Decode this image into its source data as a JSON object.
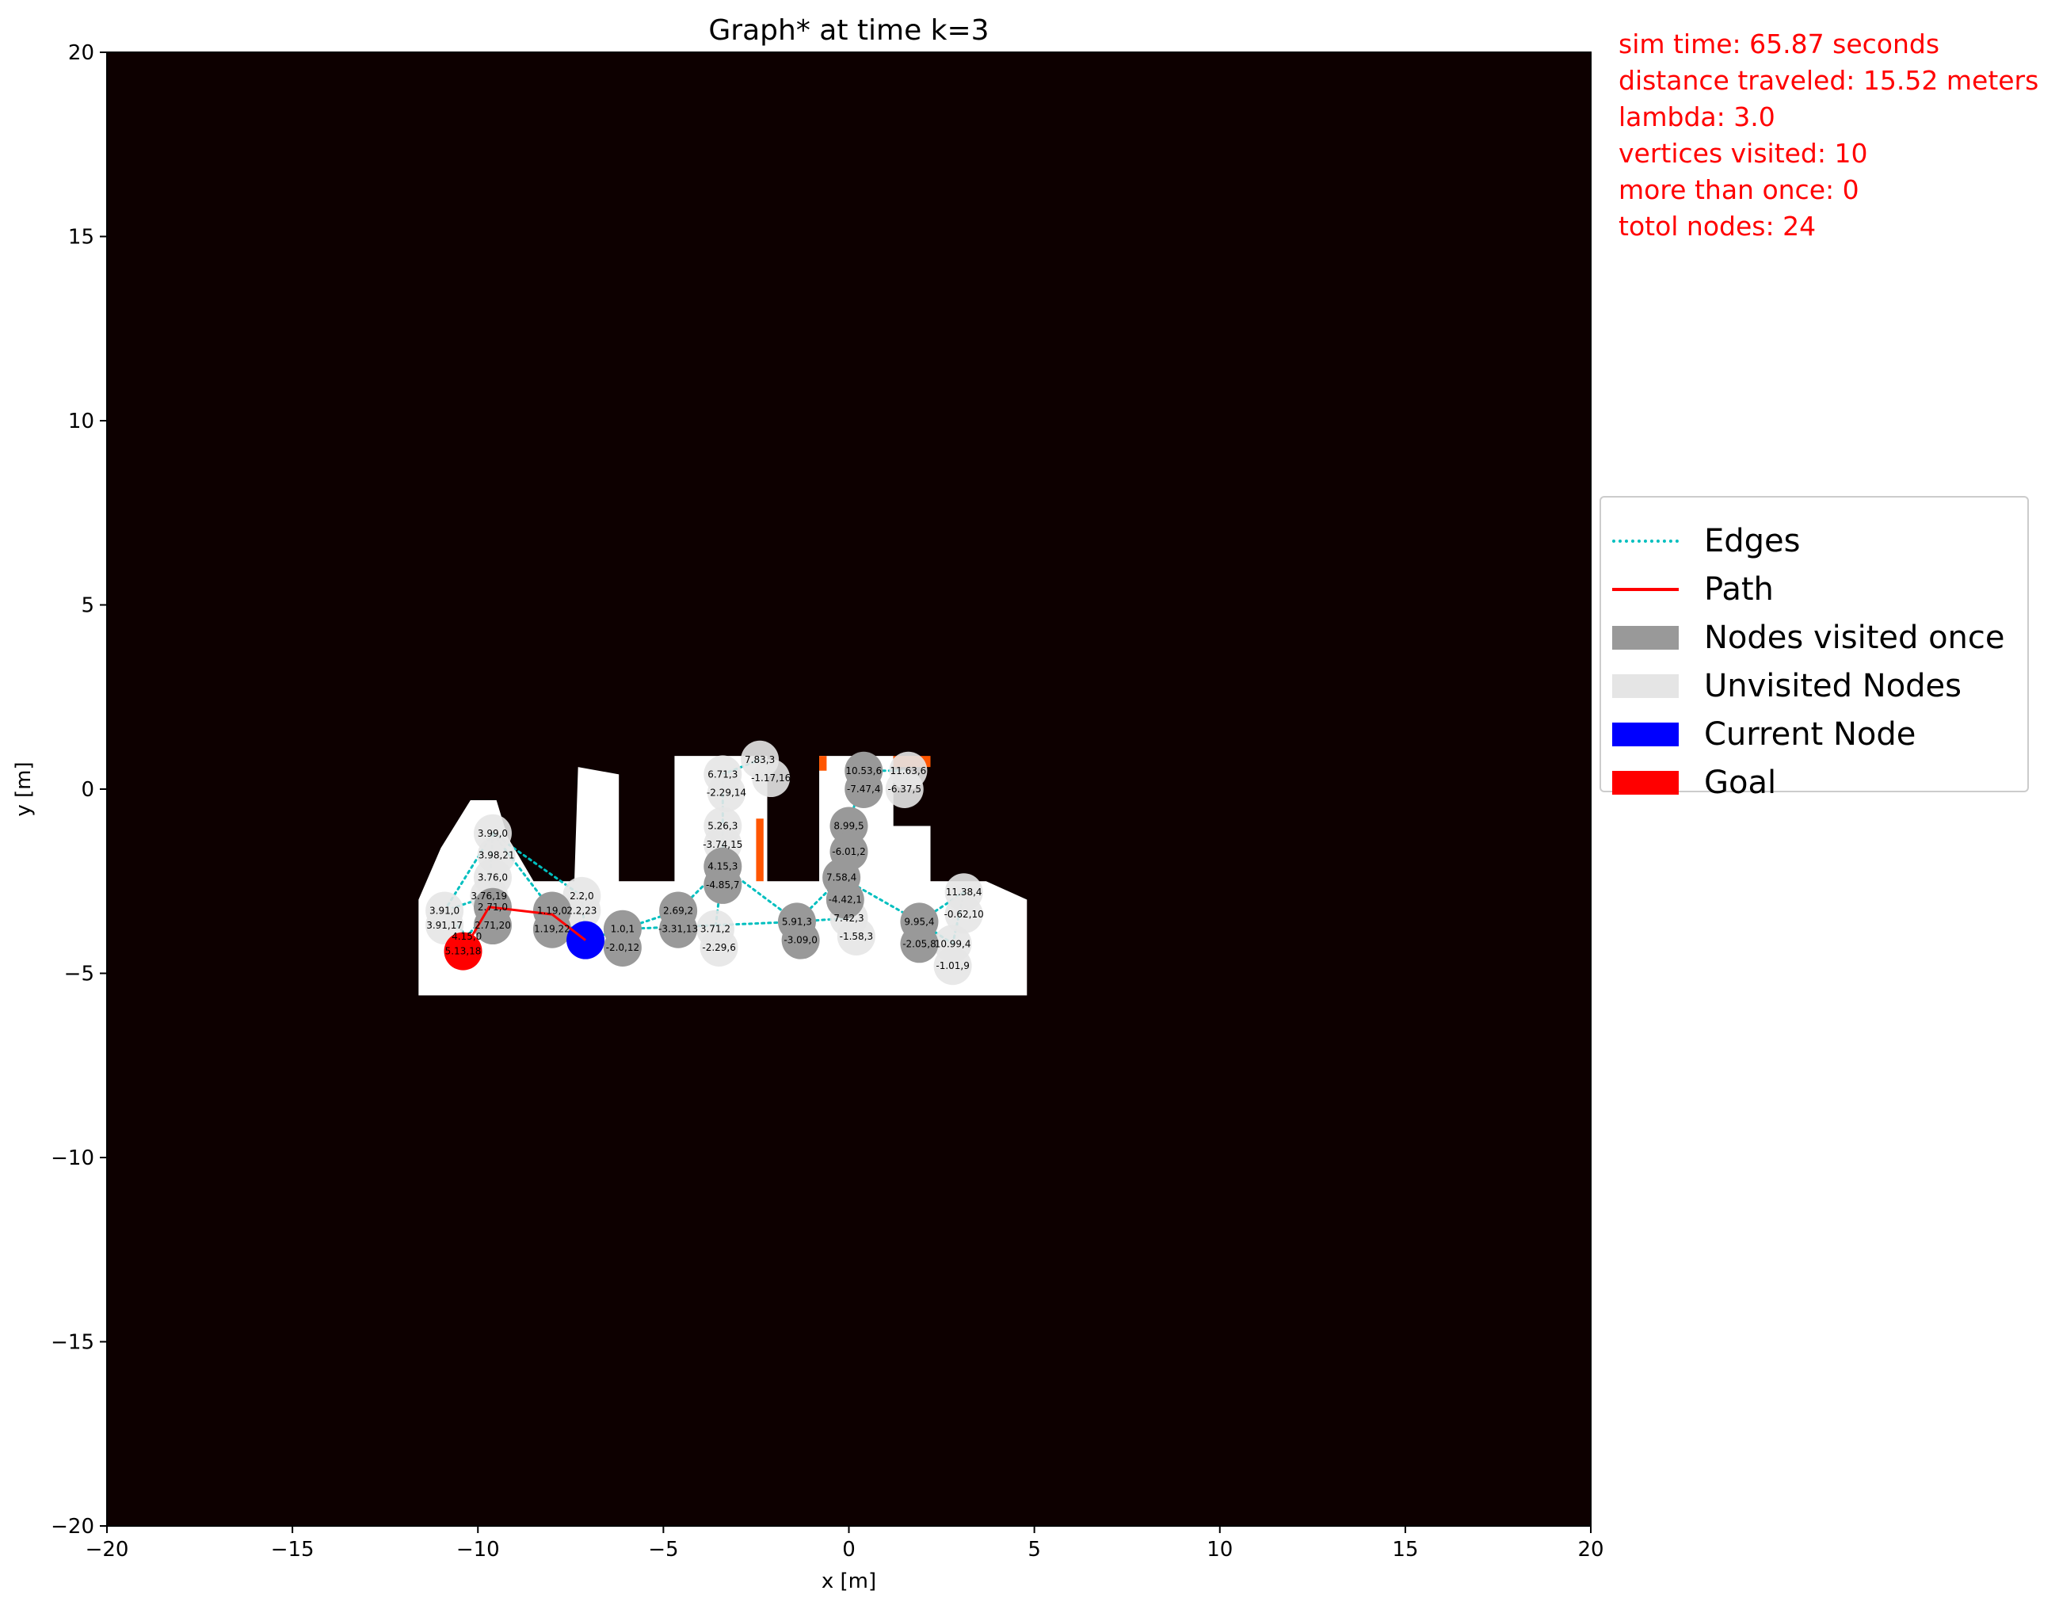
{
  "chart_data": {
    "type": "scatter",
    "title": "Graph* at time k=3",
    "xlabel": "x [m]",
    "ylabel": "y [m]",
    "xlim": [
      -20,
      20
    ],
    "ylim": [
      -20,
      20
    ],
    "xticks": [
      -20,
      -15,
      -10,
      -5,
      0,
      5,
      10,
      15,
      20
    ],
    "yticks": [
      -20,
      -15,
      -10,
      -5,
      0,
      5,
      10,
      15,
      20
    ],
    "xtick_labels": [
      "−20",
      "−15",
      "−10",
      "−5",
      "0",
      "5",
      "10",
      "15",
      "20"
    ],
    "ytick_labels": [
      "−20",
      "−15",
      "−10",
      "−5",
      "0",
      "5",
      "10",
      "15",
      "20"
    ],
    "background_color": "#0d0000",
    "free_space_color": "#ffffff",
    "frontier_color": "#ff5500",
    "nodes": [
      {
        "x": -9.6,
        "y": -1.2,
        "label": "3.99,0",
        "state": "unvisited"
      },
      {
        "x": -9.5,
        "y": -1.8,
        "label": "3.98,21",
        "state": "unvisited"
      },
      {
        "x": -9.6,
        "y": -2.4,
        "label": "3.76,0",
        "state": "unvisited"
      },
      {
        "x": -9.7,
        "y": -2.9,
        "label": "3.76,19",
        "state": "unvisited"
      },
      {
        "x": -9.6,
        "y": -3.2,
        "label": "2.71,0",
        "state": "visited"
      },
      {
        "x": -9.6,
        "y": -3.7,
        "label": "2.71,20",
        "state": "visited"
      },
      {
        "x": -10.9,
        "y": -3.3,
        "label": "3.91,0",
        "state": "unvisited"
      },
      {
        "x": -10.9,
        "y": -3.7,
        "label": "3.91,17",
        "state": "unvisited"
      },
      {
        "x": -10.4,
        "y": -4.4,
        "label": "5.13,18",
        "state": "goal"
      },
      {
        "x": -10.3,
        "y": -4.0,
        "label": "4.15,0",
        "state": "goal"
      },
      {
        "x": -8.0,
        "y": -3.3,
        "label": "1.19,0",
        "state": "visited"
      },
      {
        "x": -8.0,
        "y": -3.8,
        "label": "1.19,22",
        "state": "visited"
      },
      {
        "x": -7.2,
        "y": -2.9,
        "label": "2.2,0",
        "state": "unvisited"
      },
      {
        "x": -7.2,
        "y": -3.3,
        "label": "2.2,23",
        "state": "unvisited"
      },
      {
        "x": -7.1,
        "y": -4.1,
        "label": "",
        "state": "current"
      },
      {
        "x": -6.1,
        "y": -3.8,
        "label": "1.0,1",
        "state": "visited"
      },
      {
        "x": -6.1,
        "y": -4.3,
        "label": "-2.0,12",
        "state": "visited"
      },
      {
        "x": -4.6,
        "y": -3.3,
        "label": "2.69,2",
        "state": "visited"
      },
      {
        "x": -4.6,
        "y": -3.8,
        "label": "-3.31,13",
        "state": "visited"
      },
      {
        "x": -3.6,
        "y": -3.8,
        "label": "3.71,2",
        "state": "unvisited"
      },
      {
        "x": -3.5,
        "y": -4.3,
        "label": "-2.29,6",
        "state": "unvisited"
      },
      {
        "x": -3.4,
        "y": -2.1,
        "label": "4.15,3",
        "state": "visited"
      },
      {
        "x": -3.4,
        "y": -2.6,
        "label": "-4.85,7",
        "state": "visited"
      },
      {
        "x": -3.4,
        "y": -1.0,
        "label": "5.26,3",
        "state": "unvisited"
      },
      {
        "x": -3.4,
        "y": -1.5,
        "label": "-3.74,15",
        "state": "unvisited"
      },
      {
        "x": -3.4,
        "y": 0.4,
        "label": "6.71,3",
        "state": "unvisited"
      },
      {
        "x": -3.3,
        "y": -0.1,
        "label": "-2.29,14",
        "state": "unvisited"
      },
      {
        "x": -2.4,
        "y": 0.8,
        "label": "7.83,3",
        "state": "unvisited"
      },
      {
        "x": -2.1,
        "y": 0.3,
        "label": "-1.17,16",
        "state": "unvisited"
      },
      {
        "x": -1.4,
        "y": -3.6,
        "label": "5.91,3",
        "state": "visited"
      },
      {
        "x": -1.3,
        "y": -4.1,
        "label": "-3.09,0",
        "state": "visited"
      },
      {
        "x": 0.0,
        "y": -3.5,
        "label": "7.42,3",
        "state": "unvisited"
      },
      {
        "x": 0.2,
        "y": -4.0,
        "label": "-1.58,3",
        "state": "unvisited"
      },
      {
        "x": -0.2,
        "y": -2.4,
        "label": "7.58,4",
        "state": "visited"
      },
      {
        "x": -0.1,
        "y": -3.0,
        "label": "-4.42,1",
        "state": "visited"
      },
      {
        "x": 0.0,
        "y": -1.0,
        "label": "8.99,5",
        "state": "visited"
      },
      {
        "x": 0.0,
        "y": -1.7,
        "label": "-6.01,2",
        "state": "visited"
      },
      {
        "x": 0.4,
        "y": 0.5,
        "label": "10.53,6",
        "state": "visited"
      },
      {
        "x": 0.4,
        "y": 0.0,
        "label": "-7.47,4",
        "state": "visited"
      },
      {
        "x": 1.6,
        "y": 0.5,
        "label": "11.63,6",
        "state": "unvisited"
      },
      {
        "x": 1.5,
        "y": 0.0,
        "label": "-6.37,5",
        "state": "unvisited"
      },
      {
        "x": 1.9,
        "y": -3.6,
        "label": "9.95,4",
        "state": "visited"
      },
      {
        "x": 1.9,
        "y": -4.2,
        "label": "-2.05,8",
        "state": "visited"
      },
      {
        "x": 2.8,
        "y": -4.2,
        "label": "10.99,4",
        "state": "unvisited"
      },
      {
        "x": 2.8,
        "y": -4.8,
        "label": "-1.01,9",
        "state": "unvisited"
      },
      {
        "x": 3.1,
        "y": -2.8,
        "label": "11.38,4",
        "state": "unvisited"
      },
      {
        "x": 3.1,
        "y": -3.4,
        "label": "-0.62,10",
        "state": "unvisited"
      }
    ],
    "edges": [
      [
        [
          -9.6,
          -1.2
        ],
        [
          -9.7,
          -2.9
        ]
      ],
      [
        [
          -9.7,
          -2.9
        ],
        [
          -9.6,
          -3.2
        ]
      ],
      [
        [
          -9.6,
          -1.2
        ],
        [
          -8.0,
          -3.3
        ]
      ],
      [
        [
          -9.7,
          -2.9
        ],
        [
          -10.9,
          -3.3
        ]
      ],
      [
        [
          -10.9,
          -3.3
        ],
        [
          -10.3,
          -4.0
        ]
      ],
      [
        [
          -9.6,
          -3.2
        ],
        [
          -10.3,
          -4.0
        ]
      ],
      [
        [
          -9.6,
          -1.2
        ],
        [
          -10.9,
          -3.3
        ]
      ],
      [
        [
          -9.6,
          -1.2
        ],
        [
          -7.2,
          -2.9
        ]
      ],
      [
        [
          -7.2,
          -2.9
        ],
        [
          -7.1,
          -4.1
        ]
      ],
      [
        [
          -8.0,
          -3.3
        ],
        [
          -7.1,
          -4.1
        ]
      ],
      [
        [
          -7.1,
          -4.1
        ],
        [
          -6.1,
          -3.8
        ]
      ],
      [
        [
          -6.1,
          -3.8
        ],
        [
          -4.6,
          -3.3
        ]
      ],
      [
        [
          -4.6,
          -3.3
        ],
        [
          -3.4,
          -2.1
        ]
      ],
      [
        [
          -3.4,
          -2.1
        ],
        [
          -3.4,
          0.4
        ]
      ],
      [
        [
          -3.4,
          0.4
        ],
        [
          -2.4,
          0.8
        ]
      ],
      [
        [
          -3.4,
          -2.1
        ],
        [
          -3.6,
          -3.8
        ]
      ],
      [
        [
          -3.4,
          -2.1
        ],
        [
          -1.4,
          -3.6
        ]
      ],
      [
        [
          -6.1,
          -3.8
        ],
        [
          -1.4,
          -3.6
        ]
      ],
      [
        [
          -1.4,
          -3.6
        ],
        [
          0.0,
          -3.5
        ]
      ],
      [
        [
          -1.4,
          -3.6
        ],
        [
          -0.2,
          -2.4
        ]
      ],
      [
        [
          -0.2,
          -2.4
        ],
        [
          0.0,
          -1.0
        ]
      ],
      [
        [
          0.0,
          -1.0
        ],
        [
          0.4,
          0.5
        ]
      ],
      [
        [
          0.4,
          0.5
        ],
        [
          1.6,
          0.5
        ]
      ],
      [
        [
          -0.2,
          -2.4
        ],
        [
          1.9,
          -3.6
        ]
      ],
      [
        [
          1.9,
          -3.6
        ],
        [
          3.1,
          -2.8
        ]
      ],
      [
        [
          1.9,
          -3.6
        ],
        [
          2.8,
          -4.2
        ]
      ],
      [
        [
          3.1,
          -2.8
        ],
        [
          2.8,
          -4.2
        ]
      ]
    ],
    "path": [
      [
        -10.4,
        -4.4
      ],
      [
        -9.7,
        -3.2
      ],
      [
        -8.0,
        -3.4
      ],
      [
        -7.1,
        -4.1
      ]
    ],
    "free_space": [
      [
        [
          -11.6,
          -3.0
        ],
        [
          -11.6,
          -5.6
        ],
        [
          4.8,
          -5.6
        ],
        [
          4.8,
          -3.0
        ],
        [
          3.7,
          -2.5
        ],
        [
          2.2,
          -2.5
        ],
        [
          2.2,
          -1.0
        ],
        [
          1.2,
          -1.0
        ],
        [
          1.2,
          0.9
        ],
        [
          -0.8,
          0.9
        ],
        [
          -0.8,
          -2.5
        ],
        [
          -2.2,
          -2.5
        ],
        [
          -2.2,
          0.9
        ],
        [
          -4.7,
          0.9
        ],
        [
          -4.7,
          -2.5
        ],
        [
          -6.2,
          -2.5
        ],
        [
          -6.2,
          0.4
        ],
        [
          -7.3,
          0.6
        ],
        [
          -7.4,
          -2.5
        ],
        [
          -8.5,
          -2.5
        ],
        [
          -9.2,
          -1.3
        ],
        [
          -9.5,
          -0.3
        ],
        [
          -10.2,
          -0.3
        ],
        [
          -11.0,
          -1.6
        ]
      ]
    ],
    "frontiers": [
      [
        [
          -2.5,
          -0.8
        ],
        [
          -2.3,
          -0.8
        ],
        [
          -2.3,
          -2.5
        ],
        [
          -2.5,
          -2.5
        ]
      ],
      [
        [
          -0.8,
          0.9
        ],
        [
          -0.6,
          0.9
        ],
        [
          -0.6,
          0.5
        ],
        [
          -0.8,
          0.5
        ]
      ],
      [
        [
          1.2,
          0.9
        ],
        [
          2.2,
          0.9
        ],
        [
          2.2,
          0.6
        ],
        [
          1.2,
          0.6
        ]
      ]
    ]
  },
  "info": {
    "sim_time": "sim time: 65.87 seconds",
    "distance": "distance traveled: 15.52 meters",
    "lambda": "lambda: 3.0",
    "vertices_visited": "vertices visited: 10",
    "more_than_once": "more than once: 0",
    "total_nodes": "totol nodes: 24"
  },
  "legend": {
    "edges": "Edges",
    "path": "Path",
    "visited_once": "Nodes visited once",
    "unvisited": "Unvisited Nodes",
    "current": "Current Node",
    "goal": "Goal",
    "colors": {
      "edges": "#00bfbf",
      "path": "#ff0000",
      "visited_once": "#999999",
      "unvisited": "#e5e5e5",
      "current": "#0000ff",
      "goal": "#ff0000"
    }
  }
}
